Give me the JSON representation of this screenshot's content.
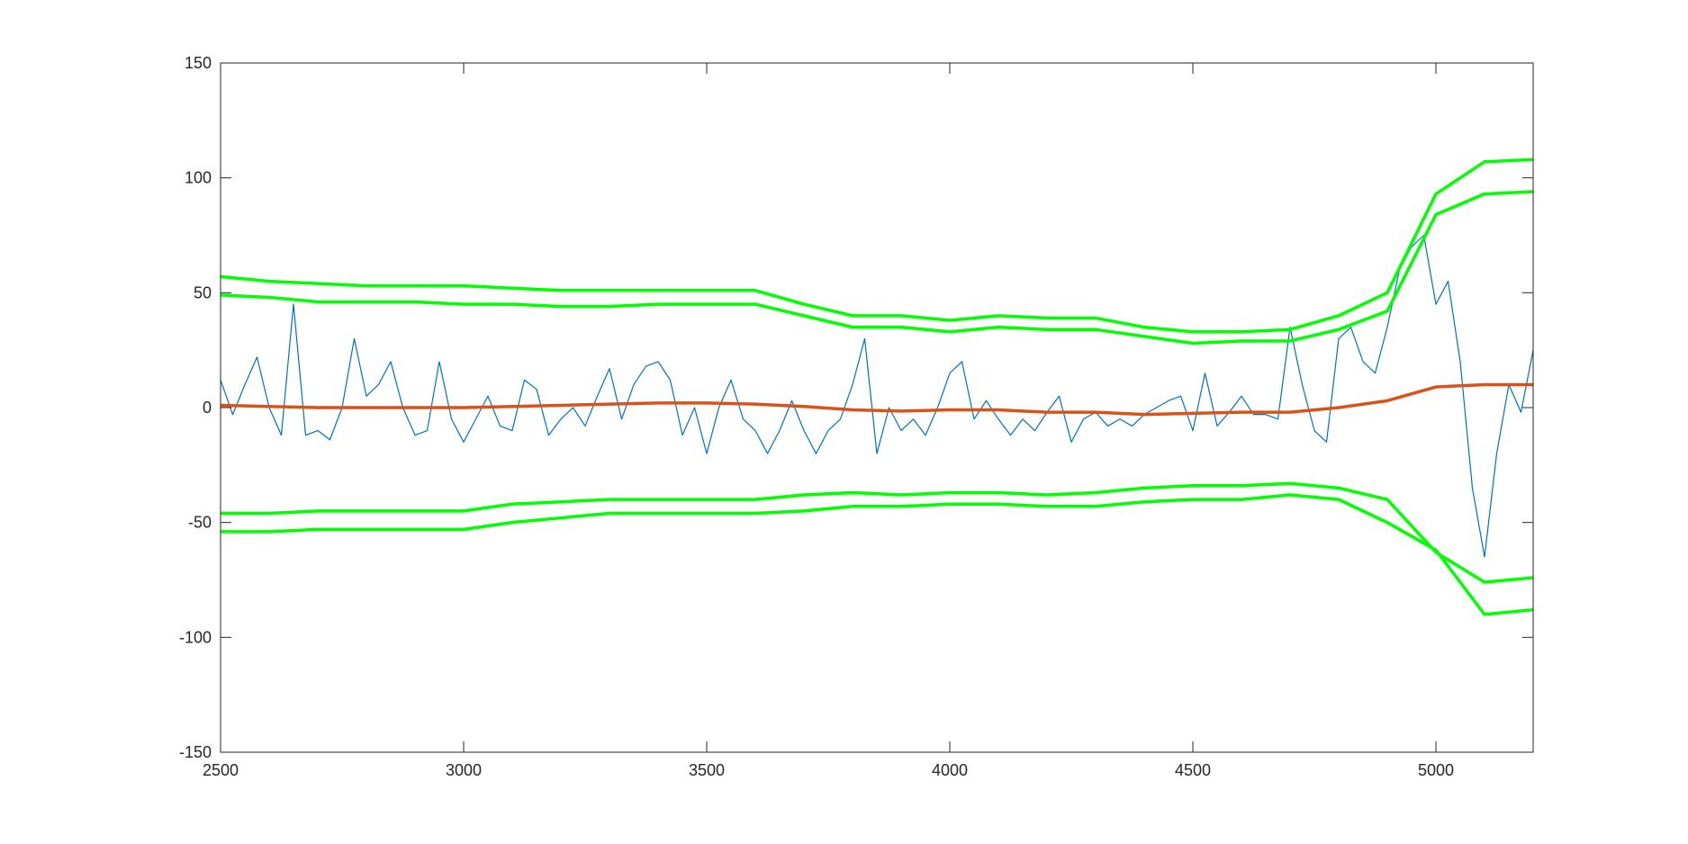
{
  "chart_data": {
    "type": "line",
    "xlim": [
      2500,
      5200
    ],
    "xticks": [
      2500,
      3000,
      3500,
      4000,
      4500,
      5000
    ],
    "ylim": [
      -150,
      150
    ],
    "yticks": [
      -150,
      -100,
      -50,
      0,
      50,
      100,
      150
    ],
    "grid": false,
    "series": [
      {
        "color": "#0072bd",
        "width": 1.2,
        "x": [
          2500,
          2525,
          2550,
          2575,
          2600,
          2625,
          2650,
          2675,
          2700,
          2725,
          2750,
          2775,
          2800,
          2825,
          2850,
          2875,
          2900,
          2925,
          2950,
          2975,
          3000,
          3025,
          3050,
          3075,
          3100,
          3125,
          3150,
          3175,
          3200,
          3225,
          3250,
          3275,
          3300,
          3325,
          3350,
          3375,
          3400,
          3425,
          3450,
          3475,
          3500,
          3525,
          3550,
          3575,
          3600,
          3625,
          3650,
          3675,
          3700,
          3725,
          3750,
          3775,
          3800,
          3825,
          3850,
          3875,
          3900,
          3925,
          3950,
          3975,
          4000,
          4025,
          4050,
          4075,
          4100,
          4125,
          4150,
          4175,
          4200,
          4225,
          4250,
          4275,
          4300,
          4325,
          4350,
          4375,
          4400,
          4425,
          4450,
          4475,
          4500,
          4525,
          4550,
          4575,
          4600,
          4625,
          4650,
          4675,
          4700,
          4725,
          4750,
          4775,
          4800,
          4825,
          4850,
          4875,
          4900,
          4925,
          4950,
          4975,
          5000,
          5025,
          5050,
          5075,
          5100,
          5125,
          5150,
          5175,
          5200
        ],
        "values": [
          12,
          -3,
          10,
          22,
          0,
          -12,
          45,
          -12,
          -10,
          -14,
          0,
          30,
          5,
          10,
          20,
          0,
          -12,
          -10,
          20,
          -5,
          -15,
          -5,
          5,
          -8,
          -10,
          12,
          8,
          -12,
          -5,
          0,
          -8,
          5,
          17,
          -5,
          10,
          18,
          20,
          12,
          -12,
          0,
          -20,
          0,
          12,
          -5,
          -10,
          -20,
          -10,
          3,
          -10,
          -20,
          -10,
          -5,
          10,
          30,
          -20,
          0,
          -10,
          -5,
          -12,
          0,
          15,
          20,
          -5,
          3,
          -5,
          -12,
          -5,
          -10,
          -2,
          5,
          -15,
          -5,
          -2,
          -8,
          -5,
          -8,
          -3,
          0,
          3,
          5,
          -10,
          15,
          -8,
          -2,
          5,
          -3,
          -3,
          -5,
          35,
          10,
          -10,
          -15,
          30,
          35,
          20,
          15,
          35,
          60,
          70,
          75,
          45,
          55,
          20,
          -35,
          -65,
          -20,
          10,
          -2,
          25
        ]
      },
      {
        "color": "#d95319",
        "width": 3.5,
        "x": [
          2500,
          2600,
          2700,
          2800,
          2900,
          3000,
          3100,
          3200,
          3300,
          3400,
          3500,
          3600,
          3700,
          3800,
          3900,
          4000,
          4100,
          4200,
          4300,
          4400,
          4500,
          4600,
          4700,
          4800,
          4900,
          5000,
          5100,
          5200
        ],
        "values": [
          1,
          0.5,
          0,
          0,
          0,
          0,
          0.5,
          1,
          1.5,
          2,
          2,
          1.5,
          0.5,
          -1,
          -1.5,
          -1,
          -1,
          -2,
          -2,
          -3,
          -2.5,
          -2,
          -2,
          0,
          3,
          9,
          10,
          10
        ]
      },
      {
        "color": "#00ff00",
        "width": 3.5,
        "x": [
          2500,
          2600,
          2700,
          2800,
          2900,
          3000,
          3100,
          3200,
          3300,
          3400,
          3500,
          3600,
          3700,
          3800,
          3900,
          4000,
          4100,
          4200,
          4300,
          4400,
          4500,
          4600,
          4700,
          4800,
          4900,
          5000,
          5100,
          5200
        ],
        "values": [
          57,
          55,
          54,
          53,
          53,
          53,
          52,
          51,
          51,
          51,
          51,
          51,
          45,
          40,
          40,
          38,
          40,
          39,
          39,
          35,
          33,
          33,
          34,
          40,
          50,
          93,
          107,
          108
        ]
      },
      {
        "color": "#00ff00",
        "width": 3.5,
        "x": [
          2500,
          2600,
          2700,
          2800,
          2900,
          3000,
          3100,
          3200,
          3300,
          3400,
          3500,
          3600,
          3700,
          3800,
          3900,
          4000,
          4100,
          4200,
          4300,
          4400,
          4500,
          4600,
          4700,
          4800,
          4900,
          5000,
          5100,
          5200
        ],
        "values": [
          49,
          48,
          46,
          46,
          46,
          45,
          45,
          44,
          44,
          45,
          45,
          45,
          40,
          35,
          35,
          33,
          35,
          34,
          34,
          31,
          28,
          29,
          29,
          34,
          42,
          84,
          93,
          94
        ]
      },
      {
        "color": "#00ff00",
        "width": 3.5,
        "x": [
          2500,
          2600,
          2700,
          2800,
          2900,
          3000,
          3100,
          3200,
          3300,
          3400,
          3500,
          3600,
          3700,
          3800,
          3900,
          4000,
          4100,
          4200,
          4300,
          4400,
          4500,
          4600,
          4700,
          4800,
          4900,
          5000,
          5100,
          5200
        ],
        "values": [
          -46,
          -46,
          -45,
          -45,
          -45,
          -45,
          -42,
          -41,
          -40,
          -40,
          -40,
          -40,
          -38,
          -37,
          -38,
          -37,
          -37,
          -38,
          -37,
          -35,
          -34,
          -34,
          -33,
          -35,
          -40,
          -63,
          -76,
          -74
        ]
      },
      {
        "color": "#00ff00",
        "width": 3.5,
        "x": [
          2500,
          2600,
          2700,
          2800,
          2900,
          3000,
          3100,
          3200,
          3300,
          3400,
          3500,
          3600,
          3700,
          3800,
          3900,
          4000,
          4100,
          4200,
          4300,
          4400,
          4500,
          4600,
          4700,
          4800,
          4900,
          5000,
          5100,
          5200
        ],
        "values": [
          -54,
          -54,
          -53,
          -53,
          -53,
          -53,
          -50,
          -48,
          -46,
          -46,
          -46,
          -46,
          -45,
          -43,
          -43,
          -42,
          -42,
          -43,
          -43,
          -41,
          -40,
          -40,
          -38,
          -40,
          -50,
          -62,
          -90,
          -88
        ]
      }
    ]
  }
}
